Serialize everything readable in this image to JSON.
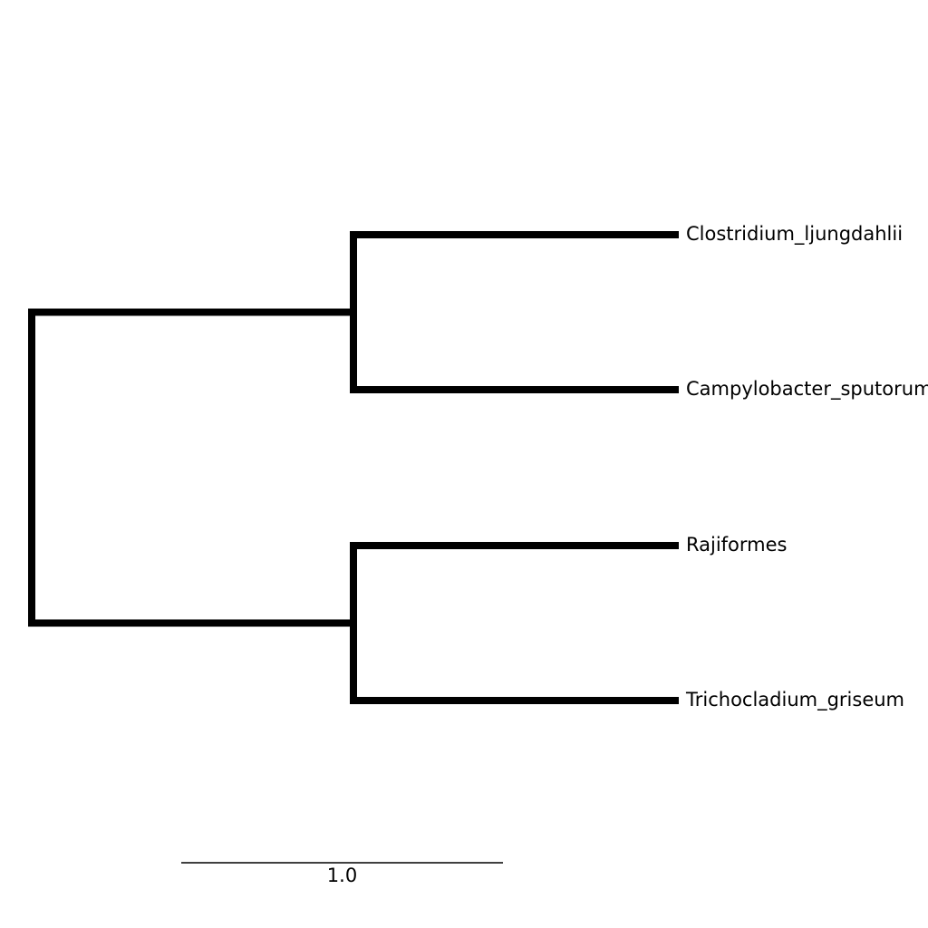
{
  "tree": {
    "leaves": [
      {
        "name": "Clostridium_ljungdahlii"
      },
      {
        "name": "Campylobacter_sputorum"
      },
      {
        "name": "Rajiformes"
      },
      {
        "name": "Trichocladium_griseum"
      }
    ],
    "clades": [
      {
        "leaves": [
          0,
          1
        ],
        "branch_length": 1.0
      },
      {
        "leaves": [
          2,
          3
        ],
        "branch_length": 1.0
      }
    ],
    "leaf_branch_length": 1.0
  },
  "scale_bar": {
    "value": 1.0,
    "label": "1.0"
  },
  "colors": {
    "branch": "#000000",
    "text": "#000000",
    "background": "#ffffff"
  }
}
